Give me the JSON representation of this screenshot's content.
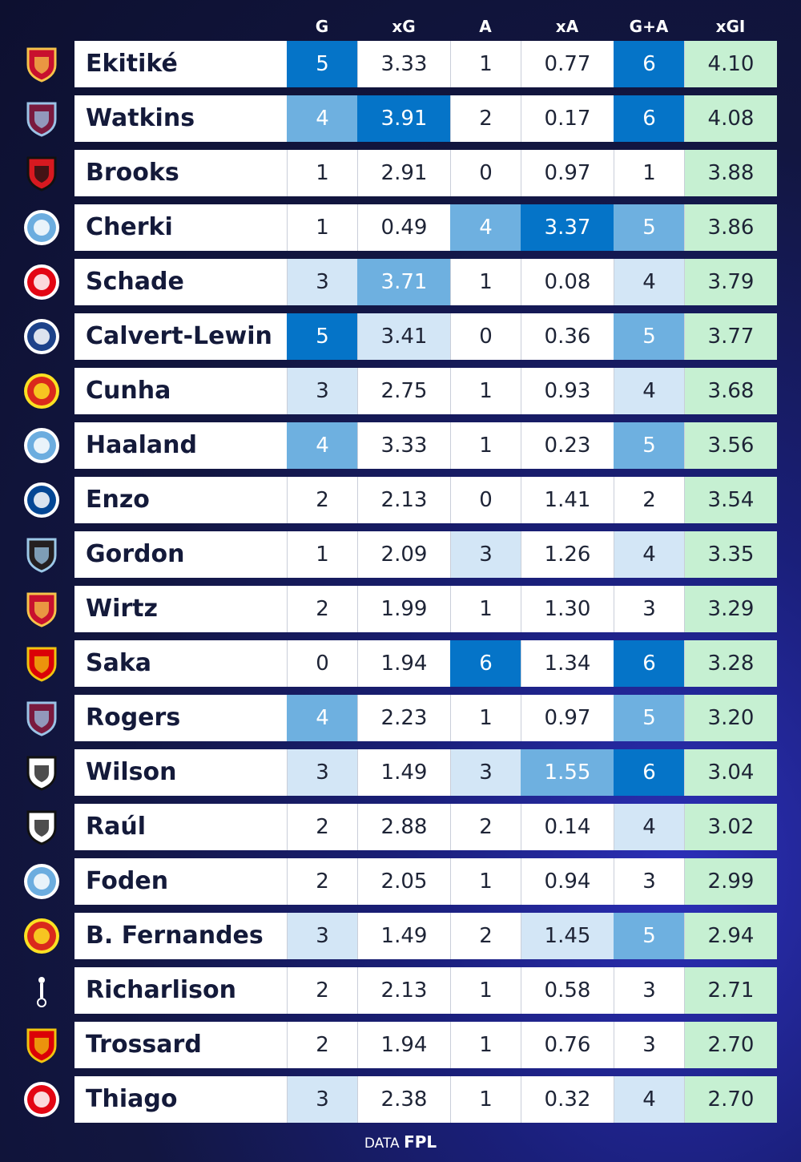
{
  "columns": [
    "G",
    "xG",
    "A",
    "xA",
    "G+A",
    "xGI"
  ],
  "footer": {
    "prefix": "DATA",
    "brand": "FPL"
  },
  "colors": {
    "dark": "#0574c8",
    "mid": "#6eb0e0",
    "light": "#d3e6f6",
    "none": "#ffffff",
    "xgi": "#c6f0d2",
    "text_dark": "#1e2436",
    "text_light": "#ffffff"
  },
  "chart_data": {
    "type": "table",
    "columns": [
      "G",
      "xG",
      "A",
      "xA",
      "G+A",
      "xGI"
    ],
    "rows": [
      {
        "player": "Ekitiké",
        "club": "liverpool",
        "values": [
          5,
          3.33,
          1,
          0.77,
          6,
          4.1
        ],
        "shade": [
          "dark",
          "none",
          "none",
          "none",
          "dark",
          "xgi"
        ]
      },
      {
        "player": "Watkins",
        "club": "aston-villa",
        "values": [
          4,
          3.91,
          2,
          0.17,
          6,
          4.08
        ],
        "shade": [
          "mid",
          "dark",
          "none",
          "none",
          "dark",
          "xgi"
        ]
      },
      {
        "player": "Brooks",
        "club": "bournemouth",
        "values": [
          1,
          2.91,
          0,
          0.97,
          1,
          3.88
        ],
        "shade": [
          "none",
          "none",
          "none",
          "none",
          "none",
          "xgi"
        ]
      },
      {
        "player": "Cherki",
        "club": "man-city",
        "values": [
          1,
          0.49,
          4,
          3.37,
          5,
          3.86
        ],
        "shade": [
          "none",
          "none",
          "mid",
          "dark",
          "mid",
          "xgi"
        ]
      },
      {
        "player": "Schade",
        "club": "brentford",
        "values": [
          3,
          3.71,
          1,
          0.08,
          4,
          3.79
        ],
        "shade": [
          "light",
          "mid",
          "none",
          "none",
          "light",
          "xgi"
        ]
      },
      {
        "player": "Calvert-Lewin",
        "club": "leeds",
        "values": [
          5,
          3.41,
          0,
          0.36,
          5,
          3.77
        ],
        "shade": [
          "dark",
          "light",
          "none",
          "none",
          "mid",
          "xgi"
        ]
      },
      {
        "player": "Cunha",
        "club": "man-utd",
        "values": [
          3,
          2.75,
          1,
          0.93,
          4,
          3.68
        ],
        "shade": [
          "light",
          "none",
          "none",
          "none",
          "light",
          "xgi"
        ]
      },
      {
        "player": "Haaland",
        "club": "man-city",
        "values": [
          4,
          3.33,
          1,
          0.23,
          5,
          3.56
        ],
        "shade": [
          "mid",
          "none",
          "none",
          "none",
          "mid",
          "xgi"
        ]
      },
      {
        "player": "Enzo",
        "club": "chelsea",
        "values": [
          2,
          2.13,
          0,
          1.41,
          2,
          3.54
        ],
        "shade": [
          "none",
          "none",
          "none",
          "none",
          "none",
          "xgi"
        ]
      },
      {
        "player": "Gordon",
        "club": "newcastle",
        "values": [
          1,
          2.09,
          3,
          1.26,
          4,
          3.35
        ],
        "shade": [
          "none",
          "none",
          "light",
          "none",
          "light",
          "xgi"
        ]
      },
      {
        "player": "Wirtz",
        "club": "liverpool",
        "values": [
          2,
          1.99,
          1,
          1.3,
          3,
          3.29
        ],
        "shade": [
          "none",
          "none",
          "none",
          "none",
          "none",
          "xgi"
        ]
      },
      {
        "player": "Saka",
        "club": "arsenal",
        "values": [
          0,
          1.94,
          6,
          1.34,
          6,
          3.28
        ],
        "shade": [
          "none",
          "none",
          "dark",
          "none",
          "dark",
          "xgi"
        ]
      },
      {
        "player": "Rogers",
        "club": "aston-villa",
        "values": [
          4,
          2.23,
          1,
          0.97,
          5,
          3.2
        ],
        "shade": [
          "mid",
          "none",
          "none",
          "none",
          "mid",
          "xgi"
        ]
      },
      {
        "player": "Wilson",
        "club": "fulham",
        "values": [
          3,
          1.49,
          3,
          1.55,
          6,
          3.04
        ],
        "shade": [
          "light",
          "none",
          "light",
          "mid",
          "dark",
          "xgi"
        ]
      },
      {
        "player": "Raúl",
        "club": "fulham",
        "values": [
          2,
          2.88,
          2,
          0.14,
          4,
          3.02
        ],
        "shade": [
          "none",
          "none",
          "none",
          "none",
          "light",
          "xgi"
        ]
      },
      {
        "player": "Foden",
        "club": "man-city",
        "values": [
          2,
          2.05,
          1,
          0.94,
          3,
          2.99
        ],
        "shade": [
          "none",
          "none",
          "none",
          "none",
          "none",
          "xgi"
        ]
      },
      {
        "player": "B. Fernandes",
        "club": "man-utd",
        "values": [
          3,
          1.49,
          2,
          1.45,
          5,
          2.94
        ],
        "shade": [
          "light",
          "none",
          "none",
          "light",
          "mid",
          "xgi"
        ]
      },
      {
        "player": "Richarlison",
        "club": "tottenham",
        "values": [
          2,
          2.13,
          1,
          0.58,
          3,
          2.71
        ],
        "shade": [
          "none",
          "none",
          "none",
          "none",
          "none",
          "xgi"
        ]
      },
      {
        "player": "Trossard",
        "club": "arsenal",
        "values": [
          2,
          1.94,
          1,
          0.76,
          3,
          2.7
        ],
        "shade": [
          "none",
          "none",
          "none",
          "none",
          "none",
          "xgi"
        ]
      },
      {
        "player": "Thiago",
        "club": "brentford",
        "values": [
          3,
          2.38,
          1,
          0.32,
          4,
          2.7
        ],
        "shade": [
          "light",
          "none",
          "none",
          "none",
          "light",
          "xgi"
        ]
      }
    ]
  }
}
